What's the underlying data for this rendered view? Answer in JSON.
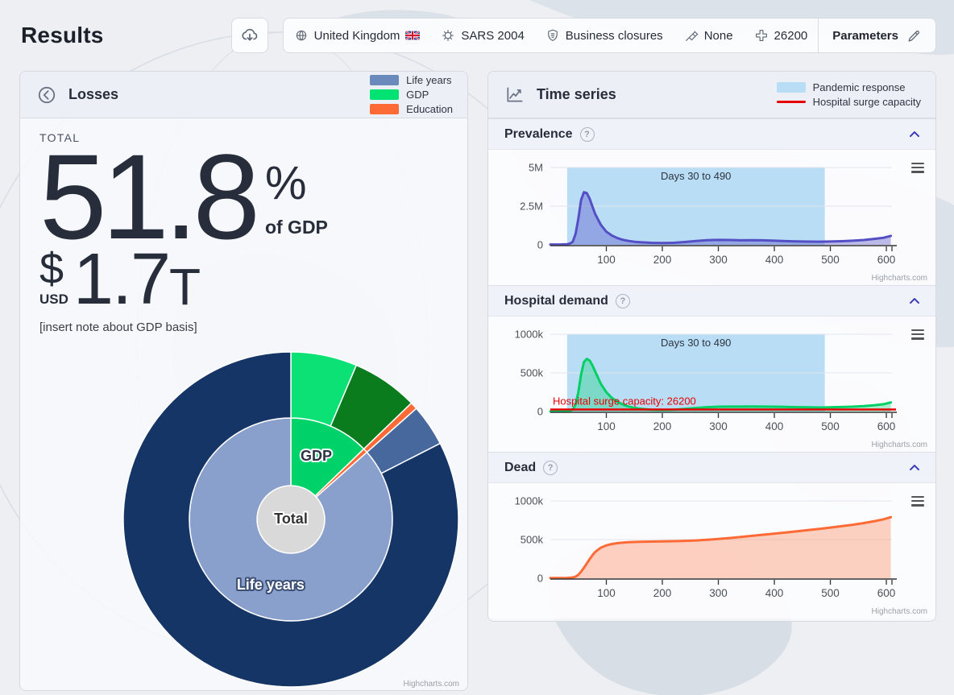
{
  "header": {
    "title": "Results",
    "parameters_label": "Parameters",
    "toolbar": [
      {
        "icon": "globe-icon",
        "label": "United Kingdom",
        "flag": "uk"
      },
      {
        "icon": "virus-icon",
        "label": "SARS 2004"
      },
      {
        "icon": "shield-icon",
        "label": "Business closures"
      },
      {
        "icon": "syringe-icon",
        "label": "None"
      },
      {
        "icon": "medical-cross-icon",
        "label": "26200"
      }
    ]
  },
  "losses": {
    "title": "Losses",
    "legend": [
      {
        "label": "Life years",
        "color": "#6b8abc"
      },
      {
        "label": "GDP",
        "color": "#00e272"
      },
      {
        "label": "Education",
        "color": "#fe6a35"
      }
    ],
    "total_label": "TOTAL",
    "percent": "51.8",
    "percent_sign": "%",
    "of_gdp_label": "of GDP",
    "currency_symbol": "$",
    "currency_code": "USD",
    "amount": "1.7",
    "amount_suffix": "T",
    "note": "[insert note about GDP basis]",
    "credit": "Highcharts.com"
  },
  "timeseries": {
    "title": "Time series",
    "legend": [
      {
        "label": "Pandemic response",
        "type": "band",
        "color": "#b8ddf5"
      },
      {
        "label": "Hospital surge capacity",
        "type": "line",
        "color": "#e60000"
      }
    ],
    "sections": [
      {
        "title": "Prevalence"
      },
      {
        "title": "Hospital demand"
      },
      {
        "title": "Dead"
      }
    ],
    "credit": "Highcharts.com"
  },
  "chart_data": [
    {
      "id": "losses-breakdown",
      "type": "sunburst",
      "title": "Losses breakdown",
      "center_label": "Total",
      "center_color": "#d9d9d9",
      "angle_units": "degrees clockwise from 12 o'clock",
      "inner_ring": [
        {
          "label": "GDP",
          "from": 0,
          "to": 46,
          "share_pct": 12.8,
          "color": "#00d26a"
        },
        {
          "label": "Education",
          "from": 46,
          "to": 48.5,
          "share_pct": 0.7,
          "color": "#fe6a35"
        },
        {
          "label": "Life years",
          "from": 48.5,
          "to": 360,
          "share_pct": 86.5,
          "color": "#8aa0cc"
        }
      ],
      "outer_ring": [
        {
          "label": "",
          "parent": "GDP",
          "from": 0,
          "to": 23,
          "color": "#0be175"
        },
        {
          "label": "",
          "parent": "GDP",
          "from": 23,
          "to": 46,
          "color": "#0a7c1e"
        },
        {
          "label": "",
          "parent": "Education",
          "from": 46,
          "to": 48.5,
          "color": "#fe6a35"
        },
        {
          "label": "",
          "parent": "Life years",
          "from": 48.5,
          "to": 63,
          "color": "#46689c"
        },
        {
          "label": "",
          "parent": "Life years",
          "from": 63,
          "to": 360,
          "color": "#143565"
        }
      ],
      "labels": [
        {
          "text": "Total",
          "x": 335,
          "y": 212,
          "fill": "#333333",
          "halo": "#ffffff"
        },
        {
          "text": "GDP",
          "angle": 22,
          "radius": 84,
          "fill": "#2b3342",
          "halo": "#ffffff"
        },
        {
          "text": "Life years",
          "angle": 197,
          "radius": 86,
          "fill": "#ffffff",
          "halo": "#3c5076"
        }
      ]
    },
    {
      "id": "prevalence",
      "type": "area",
      "title": "Prevalence",
      "color": "#544fc5",
      "fill": "rgba(84,79,197,0.38)",
      "xlim": [
        0,
        610
      ],
      "ylim": [
        0,
        5000000
      ],
      "xticks": [
        100,
        200,
        300,
        400,
        500,
        600
      ],
      "yticks": [
        {
          "value": 0,
          "label": "0"
        },
        {
          "value": 2500000,
          "label": "2.5M"
        },
        {
          "value": 5000000,
          "label": "5M"
        }
      ],
      "plot_band": {
        "from": 30,
        "to": 490,
        "label": "Days 30 to 490",
        "color": "#b8ddf5"
      },
      "x": [
        0,
        10,
        20,
        30,
        35,
        40,
        45,
        50,
        55,
        60,
        65,
        70,
        75,
        80,
        90,
        100,
        110,
        120,
        130,
        140,
        150,
        160,
        180,
        200,
        220,
        240,
        260,
        280,
        300,
        320,
        340,
        360,
        380,
        400,
        420,
        440,
        460,
        480,
        500,
        520,
        540,
        560,
        580,
        595,
        608
      ],
      "y": [
        20000,
        20000,
        25000,
        40000,
        80000,
        200000,
        700000,
        1700000,
        2900000,
        3400000,
        3350000,
        3000000,
        2500000,
        2000000,
        1300000,
        850000,
        600000,
        430000,
        320000,
        250000,
        200000,
        170000,
        130000,
        115000,
        130000,
        180000,
        250000,
        300000,
        320000,
        310000,
        290000,
        300000,
        290000,
        265000,
        240000,
        220000,
        210000,
        205000,
        215000,
        235000,
        265000,
        310000,
        390000,
        460000,
        580000
      ]
    },
    {
      "id": "hospital-demand",
      "type": "area",
      "title": "Hospital demand",
      "color": "#00cf66",
      "fill": "rgba(0,207,102,0.32)",
      "xlim": [
        0,
        610
      ],
      "ylim": [
        0,
        1000000
      ],
      "xticks": [
        100,
        200,
        300,
        400,
        500,
        600
      ],
      "yticks": [
        {
          "value": 0,
          "label": "0"
        },
        {
          "value": 500000,
          "label": "500k"
        },
        {
          "value": 1000000,
          "label": "1000k"
        }
      ],
      "plot_band": {
        "from": 30,
        "to": 490,
        "label": "Days 30 to 490",
        "color": "#b8ddf5"
      },
      "surge_line": {
        "value": 26200,
        "label": "Hospital surge capacity: 26200",
        "color": "#e60000"
      },
      "x": [
        0,
        10,
        20,
        30,
        35,
        40,
        45,
        50,
        55,
        60,
        65,
        70,
        75,
        80,
        90,
        100,
        110,
        120,
        130,
        140,
        150,
        160,
        180,
        200,
        220,
        240,
        260,
        280,
        300,
        320,
        340,
        360,
        380,
        400,
        420,
        440,
        460,
        480,
        500,
        520,
        540,
        560,
        580,
        595,
        608
      ],
      "y": [
        1000,
        1000,
        1500,
        3000,
        8000,
        25000,
        90000,
        250000,
        480000,
        640000,
        680000,
        660000,
        600000,
        520000,
        360000,
        250000,
        175000,
        125000,
        90000,
        65000,
        48000,
        36000,
        24000,
        20000,
        24000,
        34000,
        46000,
        56000,
        62000,
        64000,
        64000,
        65000,
        64000,
        62000,
        59000,
        56000,
        54000,
        52000,
        54000,
        58000,
        63000,
        70000,
        82000,
        95000,
        118000
      ]
    },
    {
      "id": "dead",
      "type": "area",
      "title": "Dead",
      "color": "#fe6a35",
      "fill": "rgba(254,106,53,0.30)",
      "xlim": [
        0,
        610
      ],
      "ylim": [
        0,
        1000000
      ],
      "xticks": [
        100,
        200,
        300,
        400,
        500,
        600
      ],
      "yticks": [
        {
          "value": 0,
          "label": "0"
        },
        {
          "value": 500000,
          "label": "500k"
        },
        {
          "value": 1000000,
          "label": "1000k"
        }
      ],
      "x": [
        0,
        10,
        20,
        30,
        35,
        40,
        45,
        50,
        55,
        60,
        65,
        70,
        75,
        80,
        90,
        100,
        110,
        120,
        130,
        140,
        150,
        160,
        180,
        200,
        220,
        240,
        260,
        280,
        300,
        320,
        340,
        360,
        380,
        400,
        420,
        440,
        460,
        480,
        500,
        520,
        540,
        560,
        580,
        595,
        608
      ],
      "y": [
        2000,
        2000,
        2500,
        4000,
        6000,
        10000,
        20000,
        45000,
        85000,
        135000,
        190000,
        245000,
        295000,
        340000,
        395000,
        425000,
        443000,
        454000,
        461000,
        466000,
        469000,
        471000,
        474000,
        476000,
        479000,
        483000,
        489000,
        497000,
        508000,
        520000,
        534000,
        548000,
        562000,
        577000,
        592000,
        607000,
        622000,
        638000,
        655000,
        673000,
        692000,
        714000,
        740000,
        762000,
        790000
      ]
    }
  ]
}
